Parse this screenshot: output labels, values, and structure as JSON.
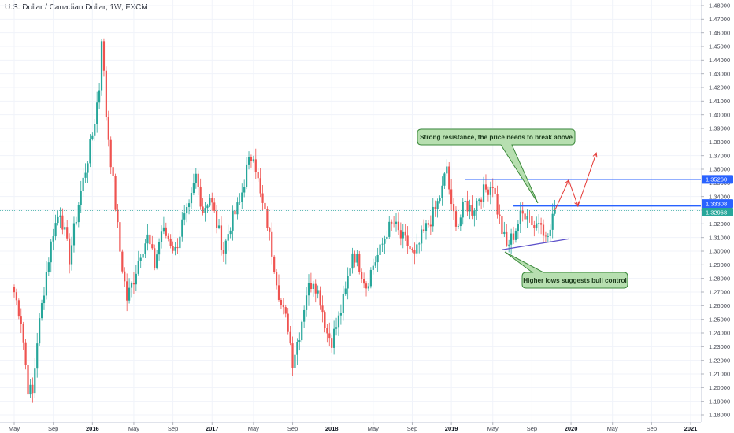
{
  "title": "U.S. Dollar / Canadian Dollar, 1W, FXCM",
  "colors": {
    "up": "#26a69a",
    "down": "#ef5350",
    "resistance": "#2962ff",
    "support": "#5b4fc9",
    "arrow": "#e53935",
    "callout_fill": "#b7dfb0",
    "callout_stroke": "#3c8a3c",
    "last_price": "#26a69a"
  },
  "chart_data": {
    "type": "candlestick",
    "ylim": [
      1.175,
      1.485
    ],
    "y_ticks": [
      "1.48000",
      "1.47000",
      "1.46000",
      "1.45000",
      "1.44000",
      "1.43000",
      "1.42000",
      "1.41000",
      "1.40000",
      "1.39000",
      "1.38000",
      "1.37000",
      "1.36000",
      "1.35000",
      "1.34000",
      "1.33000",
      "1.32000",
      "1.31000",
      "1.30000",
      "1.29000",
      "1.28000",
      "1.27000",
      "1.26000",
      "1.25000",
      "1.24000",
      "1.23000",
      "1.22000",
      "1.21000",
      "1.20000",
      "1.19000",
      "1.18000"
    ],
    "x_ticks": [
      {
        "label": "May",
        "week": 0,
        "bold": false
      },
      {
        "label": "Sep",
        "week": 17,
        "bold": false
      },
      {
        "label": "2016",
        "week": 34,
        "bold": true
      },
      {
        "label": "May",
        "week": 52,
        "bold": false
      },
      {
        "label": "Sep",
        "week": 69,
        "bold": false
      },
      {
        "label": "2017",
        "week": 86,
        "bold": true
      },
      {
        "label": "May",
        "week": 104,
        "bold": false
      },
      {
        "label": "Sep",
        "week": 121,
        "bold": false
      },
      {
        "label": "2018",
        "week": 138,
        "bold": true
      },
      {
        "label": "May",
        "week": 156,
        "bold": false
      },
      {
        "label": "Sep",
        "week": 173,
        "bold": false
      },
      {
        "label": "2019",
        "week": 190,
        "bold": true
      },
      {
        "label": "May",
        "week": 208,
        "bold": false
      },
      {
        "label": "Sep",
        "week": 225,
        "bold": false
      },
      {
        "label": "2020",
        "week": 242,
        "bold": true
      },
      {
        "label": "May",
        "week": 260,
        "bold": false
      },
      {
        "label": "Sep",
        "week": 277,
        "bold": false
      },
      {
        "label": "2021",
        "week": 294,
        "bold": true
      }
    ],
    "weeks_total": 302,
    "anchors": [
      [
        0,
        1.27
      ],
      [
        3,
        1.25
      ],
      [
        6,
        1.2
      ],
      [
        8,
        1.195
      ],
      [
        10,
        1.235
      ],
      [
        14,
        1.285
      ],
      [
        17,
        1.315
      ],
      [
        20,
        1.33
      ],
      [
        24,
        1.295
      ],
      [
        28,
        1.335
      ],
      [
        31,
        1.36
      ],
      [
        34,
        1.385
      ],
      [
        37,
        1.42
      ],
      [
        38,
        1.458
      ],
      [
        40,
        1.4
      ],
      [
        43,
        1.35
      ],
      [
        46,
        1.3
      ],
      [
        49,
        1.265
      ],
      [
        52,
        1.28
      ],
      [
        55,
        1.3
      ],
      [
        58,
        1.31
      ],
      [
        61,
        1.29
      ],
      [
        64,
        1.315
      ],
      [
        67,
        1.31
      ],
      [
        70,
        1.3
      ],
      [
        73,
        1.32
      ],
      [
        76,
        1.33
      ],
      [
        79,
        1.355
      ],
      [
        82,
        1.33
      ],
      [
        85,
        1.34
      ],
      [
        88,
        1.32
      ],
      [
        91,
        1.3
      ],
      [
        94,
        1.32
      ],
      [
        98,
        1.335
      ],
      [
        101,
        1.36
      ],
      [
        104,
        1.373
      ],
      [
        107,
        1.34
      ],
      [
        110,
        1.32
      ],
      [
        113,
        1.29
      ],
      [
        116,
        1.26
      ],
      [
        119,
        1.245
      ],
      [
        121,
        1.22
      ],
      [
        124,
        1.24
      ],
      [
        127,
        1.27
      ],
      [
        130,
        1.28
      ],
      [
        133,
        1.265
      ],
      [
        136,
        1.24
      ],
      [
        138,
        1.235
      ],
      [
        141,
        1.25
      ],
      [
        144,
        1.27
      ],
      [
        147,
        1.3
      ],
      [
        150,
        1.29
      ],
      [
        153,
        1.275
      ],
      [
        156,
        1.29
      ],
      [
        159,
        1.3
      ],
      [
        162,
        1.315
      ],
      [
        165,
        1.32
      ],
      [
        168,
        1.31
      ],
      [
        171,
        1.305
      ],
      [
        174,
        1.295
      ],
      [
        177,
        1.31
      ],
      [
        180,
        1.32
      ],
      [
        183,
        1.33
      ],
      [
        186,
        1.345
      ],
      [
        188,
        1.362
      ],
      [
        190,
        1.33
      ],
      [
        193,
        1.32
      ],
      [
        196,
        1.335
      ],
      [
        199,
        1.33
      ],
      [
        202,
        1.34
      ],
      [
        205,
        1.345
      ],
      [
        208,
        1.35
      ],
      [
        210,
        1.33
      ],
      [
        212,
        1.315
      ],
      [
        214,
        1.303
      ],
      [
        217,
        1.312
      ],
      [
        220,
        1.325
      ],
      [
        223,
        1.33
      ],
      [
        226,
        1.318
      ],
      [
        229,
        1.325
      ],
      [
        231,
        1.308
      ],
      [
        233,
        1.315
      ],
      [
        235,
        1.33
      ]
    ],
    "last_price": 1.32968,
    "levels": [
      {
        "price": 1.3526,
        "label": "1.35260"
      },
      {
        "price": 1.33308,
        "label": "1.33308"
      },
      {
        "price": 1.32968,
        "label": "1.32968"
      }
    ],
    "resistance_lines": [
      {
        "from_week": 196,
        "to_week": 302,
        "price": 1.3526
      },
      {
        "from_week": 217,
        "to_week": 302,
        "price": 1.33308
      }
    ],
    "support_line": {
      "from": [
        212,
        1.301
      ],
      "to": [
        241,
        1.309
      ]
    },
    "projection": [
      [
        235,
        1.33
      ],
      [
        241,
        1.352
      ],
      [
        245,
        1.333
      ],
      [
        253,
        1.372
      ]
    ],
    "annotations": [
      "Strong resistance, the price needs to break above",
      "Higher lows suggests bull control"
    ]
  }
}
